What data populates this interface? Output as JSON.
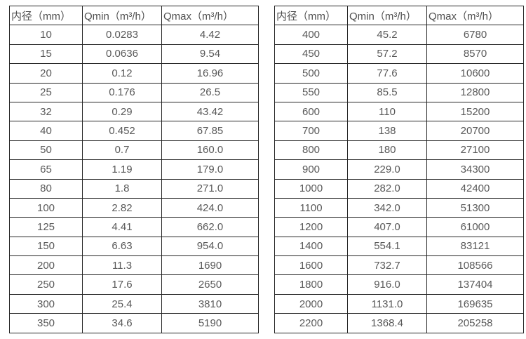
{
  "colors": {
    "background": "#ffffff",
    "border": "#262626",
    "text": "#595959"
  },
  "tables": [
    {
      "name": "flow-rate-table-small-diameters",
      "headers": [
        "内径（mm）",
        "Qmin（m³/h）",
        "Qmax（m³/h）"
      ],
      "rows": [
        [
          "10",
          "0.0283",
          "4.42"
        ],
        [
          "15",
          "0.0636",
          "9.54"
        ],
        [
          "20",
          "0.12",
          "16.96"
        ],
        [
          "25",
          "0.176",
          "26.5"
        ],
        [
          "32",
          "0.29",
          "43.42"
        ],
        [
          "40",
          "0.452",
          "67.85"
        ],
        [
          "50",
          "0.7",
          "160.0"
        ],
        [
          "65",
          "1.19",
          "179.0"
        ],
        [
          "80",
          "1.8",
          "271.0"
        ],
        [
          "100",
          "2.82",
          "424.0"
        ],
        [
          "125",
          "4.41",
          "662.0"
        ],
        [
          "150",
          "6.63",
          "954.0"
        ],
        [
          "200",
          "11.3",
          "1690"
        ],
        [
          "250",
          "17.6",
          "2650"
        ],
        [
          "300",
          "25.4",
          "3810"
        ],
        [
          "350",
          "34.6",
          "5190"
        ]
      ]
    },
    {
      "name": "flow-rate-table-large-diameters",
      "headers": [
        "内径（mm）",
        "Qmin（m³/h）",
        "Qmax（m³/h）"
      ],
      "rows": [
        [
          "400",
          "45.2",
          "6780"
        ],
        [
          "450",
          "57.2",
          "8570"
        ],
        [
          "500",
          "77.6",
          "10600"
        ],
        [
          "550",
          "85.5",
          "12800"
        ],
        [
          "600",
          "110",
          "15200"
        ],
        [
          "700",
          "138",
          "20700"
        ],
        [
          "800",
          "180",
          "27100"
        ],
        [
          "900",
          "229.0",
          "34300"
        ],
        [
          "1000",
          "282.0",
          "42400"
        ],
        [
          "1100",
          "342.0",
          "51300"
        ],
        [
          "1200",
          "407.0",
          "61000"
        ],
        [
          "1400",
          "554.1",
          "83121"
        ],
        [
          "1600",
          "732.7",
          "108566"
        ],
        [
          "1800",
          "916.0",
          "137404"
        ],
        [
          "2000",
          "1131.0",
          "169635"
        ],
        [
          "2200",
          "1368.4",
          "205258"
        ]
      ]
    }
  ]
}
